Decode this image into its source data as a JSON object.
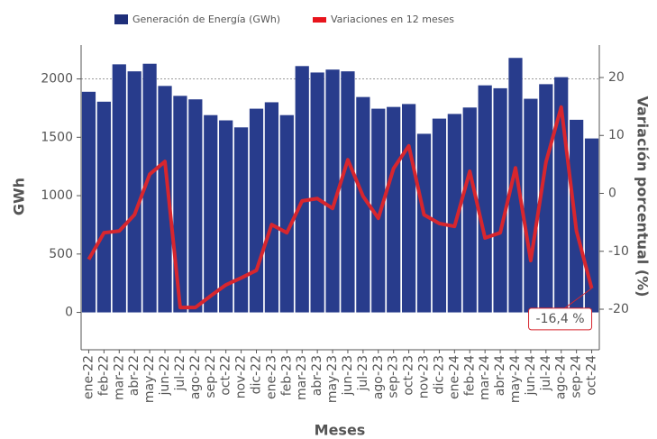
{
  "chart_data": {
    "type": "bar_line",
    "categories": [
      "ene-22",
      "feb-22",
      "mar-22",
      "abr-22",
      "may-22",
      "jun-22",
      "jul-22",
      "ago-22",
      "sep-22",
      "oct-22",
      "nov-22",
      "dic-22",
      "ene-23",
      "feb-23",
      "mar-23",
      "abr-23",
      "may-23",
      "jun-23",
      "jul-23",
      "ago-23",
      "sep-23",
      "oct-23",
      "nov-23",
      "dic-23",
      "ene-24",
      "feb-24",
      "mar-24",
      "abr-24",
      "may-24",
      "jun-24",
      "jul-24",
      "ago-24",
      "sep-24",
      "oct-24"
    ],
    "series": [
      {
        "name": "Generación de Energía (GWh)",
        "color": "#283c8c",
        "legend_color": "#1f2f7a",
        "values": [
          1890,
          1805,
          2125,
          2065,
          2130,
          1940,
          1855,
          1825,
          1690,
          1645,
          1585,
          1745,
          1800,
          1690,
          2110,
          2055,
          2080,
          2065,
          1845,
          1745,
          1760,
          1785,
          1530,
          1660,
          1700,
          1755,
          1945,
          1920,
          2180,
          1830,
          1955,
          2015,
          1650,
          1490
        ]
      },
      {
        "name": "Variaciones en 12 meses",
        "color": "#d7262e",
        "legend_color": "#e8141c",
        "axis": "y2",
        "values": [
          -11.4,
          -6.8,
          -6.5,
          -3.7,
          3.3,
          5.5,
          -19.7,
          -19.7,
          -17.7,
          -15.8,
          -14.6,
          -13.3,
          -5.4,
          -6.8,
          -1.3,
          -0.9,
          -2.6,
          5.8,
          -0.5,
          -4.3,
          4.3,
          8.2,
          -3.7,
          -5.2,
          -5.7,
          3.8,
          -7.7,
          -6.8,
          4.4,
          -11.6,
          5.4,
          14.9,
          -6.5,
          -16.4
        ]
      }
    ],
    "x_label": "Meses",
    "y_label": "GWh",
    "y2_label": "Variación porcentual (%)",
    "annotation": "-16,4 %",
    "ylim": [
      -320,
      2290
    ],
    "yticks": [
      0,
      500,
      1000,
      1500,
      2000
    ],
    "y2lim": [
      -27,
      25.6
    ],
    "y2ticks": [
      -20,
      -10,
      0,
      10,
      20
    ],
    "reference_line": 2000
  }
}
